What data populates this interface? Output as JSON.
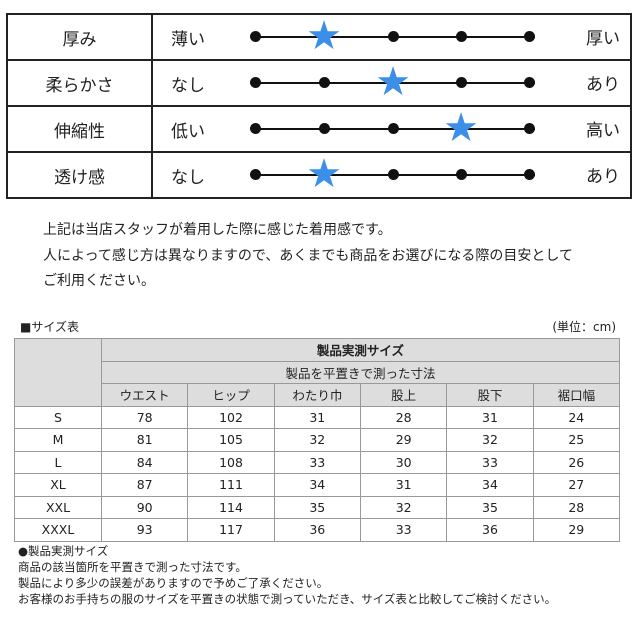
{
  "feel": {
    "rows": [
      {
        "name": "厚み",
        "left": "薄い",
        "right": "厚い",
        "level": 2
      },
      {
        "name": "柔らかさ",
        "left": "なし",
        "right": "あり",
        "level": 3
      },
      {
        "name": "伸縮性",
        "left": "低い",
        "right": "高い",
        "level": 4
      },
      {
        "name": "透け感",
        "left": "なし",
        "right": "あり",
        "level": 2
      }
    ],
    "scale_max": 5,
    "star_color": "#3b8fe8"
  },
  "note": [
    "上記は当店スタッフが着用した際に感じた着用感です。",
    "人によって感じ方は異なりますので、あくまでも商品をお選びになる際の目安として",
    "ご利用ください。"
  ],
  "size": {
    "title": "■サイズ表",
    "unit": "(単位：cm)",
    "header1": "製品実測サイズ",
    "header2": "製品を平置きで測った寸法",
    "columns": [
      "ウエスト",
      "ヒップ",
      "わたり巾",
      "股上",
      "股下",
      "裾口幅"
    ],
    "rows": [
      {
        "size": "S",
        "values": [
          "78",
          "102",
          "31",
          "28",
          "31",
          "24"
        ]
      },
      {
        "size": "M",
        "values": [
          "81",
          "105",
          "32",
          "29",
          "32",
          "25"
        ]
      },
      {
        "size": "L",
        "values": [
          "84",
          "108",
          "33",
          "30",
          "33",
          "26"
        ]
      },
      {
        "size": "XL",
        "values": [
          "87",
          "111",
          "34",
          "31",
          "34",
          "27"
        ]
      },
      {
        "size": "XXL",
        "values": [
          "90",
          "114",
          "35",
          "32",
          "35",
          "28"
        ]
      },
      {
        "size": "XXXL",
        "values": [
          "93",
          "117",
          "36",
          "33",
          "36",
          "29"
        ]
      }
    ]
  },
  "footer": [
    "●製品実測サイズ",
    "商品の該当箇所を平置きで測った寸法です。",
    "製品により多少の誤差がありますので予めご了承ください。",
    "お客様のお手持ちの服のサイズを平置きの状態で測っていただき、サイズ表と比較してご検討ください。"
  ]
}
